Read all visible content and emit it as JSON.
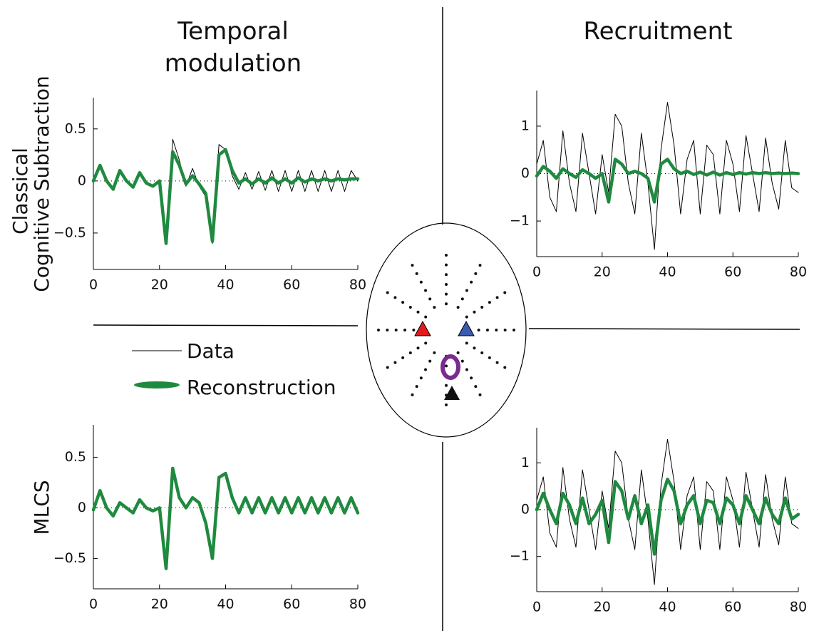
{
  "labels": {
    "col1": [
      "Temporal",
      "modulation"
    ],
    "col2": "Recruitment",
    "row1": [
      "Classical",
      "Cognitive  Subtraction"
    ],
    "row2": "MLCS"
  },
  "chart_data": [
    {
      "type": "line",
      "xlim": [
        0,
        80
      ],
      "ylim": [
        -0.85,
        0.8
      ],
      "xticks": [
        0,
        20,
        40,
        60,
        80
      ],
      "yticks": [
        {
          "value": -0.5,
          "label": "−0.5"
        },
        0,
        0.5
      ],
      "hline": 0,
      "x": [
        0,
        2,
        4,
        6,
        8,
        10,
        12,
        14,
        16,
        18,
        20,
        22,
        24,
        26,
        28,
        30,
        32,
        34,
        36,
        38,
        40,
        42,
        44,
        46,
        48,
        50,
        52,
        54,
        56,
        58,
        60,
        62,
        64,
        66,
        68,
        70,
        72,
        74,
        76,
        78,
        80
      ],
      "series": [
        {
          "name": "Data",
          "color": "#000000",
          "values": [
            0.0,
            0.15,
            0.0,
            -0.08,
            0.1,
            0.0,
            -0.06,
            0.08,
            -0.02,
            -0.05,
            0.0,
            -0.6,
            0.4,
            0.2,
            -0.05,
            0.12,
            -0.05,
            -0.15,
            -0.6,
            0.35,
            0.3,
            0.05,
            -0.08,
            0.08,
            -0.08,
            0.09,
            -0.09,
            0.1,
            -0.1,
            0.1,
            -0.1,
            0.1,
            -0.1,
            0.1,
            -0.1,
            0.1,
            -0.1,
            0.1,
            -0.1,
            0.1,
            0.0
          ]
        },
        {
          "name": "Reconstruction",
          "color": "#1f8a3f",
          "values": [
            0.0,
            0.15,
            0.0,
            -0.08,
            0.1,
            0.0,
            -0.06,
            0.08,
            -0.02,
            -0.05,
            0.0,
            -0.6,
            0.28,
            0.15,
            -0.03,
            0.05,
            -0.03,
            -0.12,
            -0.58,
            0.25,
            0.3,
            0.1,
            -0.02,
            0.02,
            -0.03,
            0.02,
            -0.02,
            0.03,
            -0.02,
            0.02,
            -0.02,
            0.03,
            -0.01,
            0.02,
            0.0,
            0.02,
            0.0,
            0.02,
            0.01,
            0.02,
            0.02
          ]
        }
      ]
    },
    {
      "type": "line",
      "xlim": [
        0,
        80
      ],
      "ylim": [
        -1.75,
        1.75
      ],
      "xticks": [
        0,
        20,
        40,
        60,
        80
      ],
      "yticks": [
        {
          "value": -1,
          "label": "−1"
        },
        0,
        1
      ],
      "hline": 0,
      "x": [
        0,
        2,
        4,
        6,
        8,
        10,
        12,
        14,
        16,
        18,
        20,
        22,
        24,
        26,
        28,
        30,
        32,
        34,
        36,
        38,
        40,
        42,
        44,
        46,
        48,
        50,
        52,
        54,
        56,
        58,
        60,
        62,
        64,
        66,
        68,
        70,
        72,
        74,
        76,
        78,
        80
      ],
      "series": [
        {
          "name": "Data",
          "color": "#000000",
          "values": [
            0.2,
            0.7,
            -0.5,
            -0.8,
            0.9,
            -0.2,
            -0.8,
            0.85,
            0.0,
            -0.85,
            0.4,
            -0.4,
            1.25,
            1.0,
            -0.2,
            -0.85,
            0.85,
            -0.2,
            -1.6,
            0.5,
            1.5,
            0.6,
            -0.85,
            0.3,
            0.7,
            -0.85,
            0.6,
            0.4,
            -0.85,
            0.7,
            0.2,
            -0.8,
            0.8,
            0.0,
            -0.8,
            0.75,
            -0.2,
            -0.75,
            0.7,
            -0.3,
            -0.4
          ]
        },
        {
          "name": "Reconstruction",
          "color": "#1f8a3f",
          "values": [
            -0.05,
            0.15,
            0.05,
            -0.1,
            0.1,
            0.0,
            -0.08,
            0.08,
            0.0,
            -0.1,
            0.0,
            -0.6,
            0.3,
            0.2,
            0.0,
            0.05,
            0.0,
            -0.1,
            -0.6,
            0.2,
            0.3,
            0.1,
            0.0,
            0.05,
            -0.02,
            0.03,
            -0.03,
            0.03,
            -0.03,
            0.02,
            -0.02,
            0.02,
            -0.01,
            0.02,
            0.0,
            0.02,
            0.0,
            0.01,
            0.0,
            0.01,
            0.0
          ]
        }
      ]
    },
    {
      "type": "line",
      "xlim": [
        0,
        80
      ],
      "ylim": [
        -0.8,
        0.82
      ],
      "xticks": [
        0,
        20,
        40,
        60,
        80
      ],
      "yticks": [
        {
          "value": -0.5,
          "label": "−0.5"
        },
        0,
        0.5
      ],
      "hline": 0,
      "x": [
        0,
        2,
        4,
        6,
        8,
        10,
        12,
        14,
        16,
        18,
        20,
        22,
        24,
        26,
        28,
        30,
        32,
        34,
        36,
        38,
        40,
        42,
        44,
        46,
        48,
        50,
        52,
        54,
        56,
        58,
        60,
        62,
        64,
        66,
        68,
        70,
        72,
        74,
        76,
        78,
        80
      ],
      "series": [
        {
          "name": "Data",
          "color": "#000000",
          "values": [
            -0.02,
            0.17,
            0.0,
            -0.08,
            0.05,
            0.0,
            -0.05,
            0.08,
            0.0,
            -0.03,
            0.0,
            -0.6,
            0.4,
            0.1,
            0.0,
            0.1,
            0.05,
            -0.15,
            -0.5,
            0.3,
            0.35,
            0.1,
            -0.05,
            0.1,
            -0.05,
            0.1,
            -0.05,
            0.1,
            -0.05,
            0.1,
            -0.05,
            0.1,
            -0.05,
            0.1,
            -0.05,
            0.1,
            -0.05,
            0.1,
            -0.05,
            0.1,
            -0.05
          ]
        },
        {
          "name": "Reconstruction",
          "color": "#1f8a3f",
          "values": [
            -0.02,
            0.17,
            0.0,
            -0.08,
            0.05,
            0.0,
            -0.05,
            0.08,
            0.0,
            -0.03,
            0.0,
            -0.6,
            0.39,
            0.1,
            0.0,
            0.1,
            0.05,
            -0.15,
            -0.5,
            0.3,
            0.34,
            0.1,
            -0.05,
            0.1,
            -0.05,
            0.1,
            -0.05,
            0.1,
            -0.05,
            0.1,
            -0.05,
            0.1,
            -0.05,
            0.1,
            -0.05,
            0.1,
            -0.05,
            0.1,
            -0.05,
            0.1,
            -0.05
          ]
        }
      ]
    },
    {
      "type": "line",
      "xlim": [
        0,
        80
      ],
      "ylim": [
        -1.75,
        1.75
      ],
      "xticks": [
        0,
        20,
        40,
        60,
        80
      ],
      "yticks": [
        {
          "value": -1,
          "label": "−1"
        },
        0,
        1
      ],
      "hline": 0,
      "x": [
        0,
        2,
        4,
        6,
        8,
        10,
        12,
        14,
        16,
        18,
        20,
        22,
        24,
        26,
        28,
        30,
        32,
        34,
        36,
        38,
        40,
        42,
        44,
        46,
        48,
        50,
        52,
        54,
        56,
        58,
        60,
        62,
        64,
        66,
        68,
        70,
        72,
        74,
        76,
        78,
        80
      ],
      "series": [
        {
          "name": "Data",
          "color": "#000000",
          "values": [
            0.2,
            0.7,
            -0.5,
            -0.8,
            0.9,
            -0.2,
            -0.8,
            0.85,
            0.0,
            -0.85,
            0.4,
            -0.4,
            1.25,
            1.0,
            -0.2,
            -0.85,
            0.85,
            -0.2,
            -1.6,
            0.5,
            1.5,
            0.6,
            -0.85,
            0.3,
            0.7,
            -0.85,
            0.6,
            0.4,
            -0.85,
            0.7,
            0.2,
            -0.8,
            0.8,
            0.0,
            -0.8,
            0.75,
            -0.2,
            -0.75,
            0.7,
            -0.3,
            -0.4
          ]
        },
        {
          "name": "Reconstruction",
          "color": "#1f8a3f",
          "values": [
            0.0,
            0.35,
            0.0,
            -0.3,
            0.35,
            0.1,
            -0.3,
            0.25,
            -0.3,
            -0.1,
            0.2,
            -0.7,
            0.6,
            0.4,
            -0.2,
            0.3,
            -0.3,
            0.1,
            -0.95,
            0.2,
            0.65,
            0.4,
            -0.3,
            0.1,
            0.3,
            -0.3,
            0.2,
            0.15,
            -0.3,
            0.25,
            0.1,
            -0.3,
            0.3,
            0.0,
            -0.3,
            0.25,
            -0.1,
            -0.3,
            0.25,
            -0.2,
            -0.1
          ]
        }
      ]
    }
  ]
}
